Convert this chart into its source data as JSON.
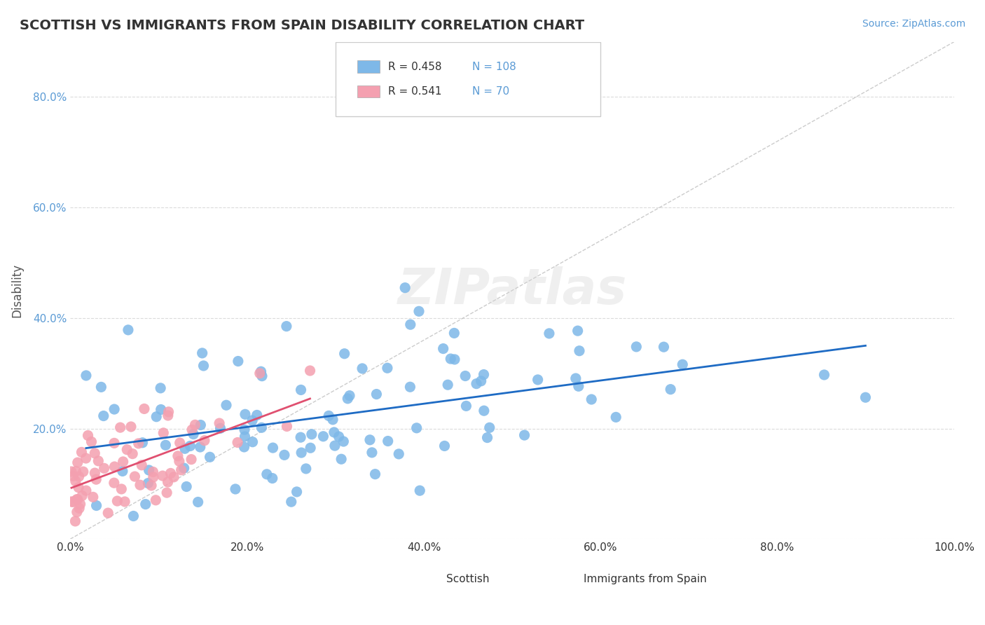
{
  "title": "SCOTTISH VS IMMIGRANTS FROM SPAIN DISABILITY CORRELATION CHART",
  "source": "Source: ZipAtlas.com",
  "xlabel_bottom": "",
  "ylabel": "Disability",
  "xlim": [
    0.0,
    1.0
  ],
  "ylim": [
    0.0,
    0.9
  ],
  "x_ticks": [
    0.0,
    0.2,
    0.4,
    0.6,
    0.8,
    1.0
  ],
  "x_tick_labels": [
    "0.0%",
    "20.0%",
    "40.0%",
    "60.0%",
    "80.0%",
    "100.0%"
  ],
  "y_ticks": [
    0.0,
    0.2,
    0.4,
    0.6,
    0.8
  ],
  "y_tick_labels": [
    "",
    "20.0%",
    "40.0%",
    "60.0%",
    "80.0%"
  ],
  "scottish_color": "#7EB8E8",
  "spain_color": "#F4A0B0",
  "scottish_line_color": "#1E6BC4",
  "spain_line_color": "#E05070",
  "R_scottish": 0.458,
  "N_scottish": 108,
  "R_spain": 0.541,
  "N_spain": 70,
  "watermark": "ZIPatlas",
  "legend_scottish": "Scottish",
  "legend_spain": "Immigrants from Spain",
  "scottish_seed": 42,
  "spain_seed": 99,
  "background_color": "#FFFFFF",
  "grid_color": "#CCCCCC"
}
